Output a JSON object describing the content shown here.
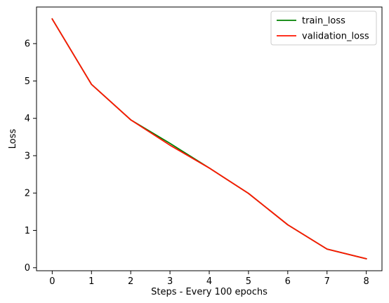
{
  "chart_data": {
    "type": "line",
    "title": "",
    "xlabel": "Steps - Every 100 epochs",
    "ylabel": "Loss",
    "x": [
      0,
      1,
      2,
      3,
      4,
      5,
      6,
      7,
      8
    ],
    "series": [
      {
        "name": "train_loss",
        "color": "#008000",
        "values": [
          6.66,
          4.91,
          3.96,
          3.33,
          2.67,
          1.99,
          1.15,
          0.5,
          0.24
        ]
      },
      {
        "name": "validation_loss",
        "color": "#ff1500",
        "values": [
          6.66,
          4.91,
          3.96,
          3.28,
          2.67,
          1.99,
          1.15,
          0.5,
          0.24
        ]
      }
    ],
    "xlim": [
      -0.4,
      8.4
    ],
    "ylim": [
      -0.08,
      6.98
    ],
    "xticks": [
      0,
      1,
      2,
      3,
      4,
      5,
      6,
      7,
      8
    ],
    "yticks": [
      0,
      1,
      2,
      3,
      4,
      5,
      6
    ],
    "grid": false,
    "legend_position": "top-right"
  }
}
